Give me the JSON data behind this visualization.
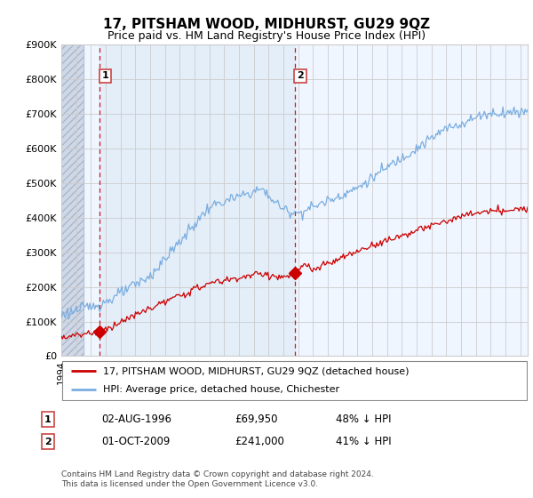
{
  "title": "17, PITSHAM WOOD, MIDHURST, GU29 9QZ",
  "subtitle": "Price paid vs. HM Land Registry's House Price Index (HPI)",
  "legend_line1": "17, PITSHAM WOOD, MIDHURST, GU29 9QZ (detached house)",
  "legend_line2": "HPI: Average price, detached house, Chichester",
  "sale1_date": "02-AUG-1996",
  "sale1_price": "£69,950",
  "sale1_note": "48% ↓ HPI",
  "sale2_date": "01-OCT-2009",
  "sale2_price": "£241,000",
  "sale2_note": "41% ↓ HPI",
  "footer": "Contains HM Land Registry data © Crown copyright and database right 2024.\nThis data is licensed under the Open Government Licence v3.0.",
  "hpi_color": "#7aade0",
  "price_color": "#cc0000",
  "sale_marker_color": "#cc0000",
  "dashed_line_color": "#cc0000",
  "plot_bg_color": "#ddeaf7",
  "hatch_region_end": 1995.5,
  "ylim": [
    0,
    900000
  ],
  "xmin": 1994,
  "xmax": 2025.5,
  "sale1_year": 1996.58,
  "sale1_value": 69950,
  "sale2_year": 2009.75,
  "sale2_value": 241000
}
